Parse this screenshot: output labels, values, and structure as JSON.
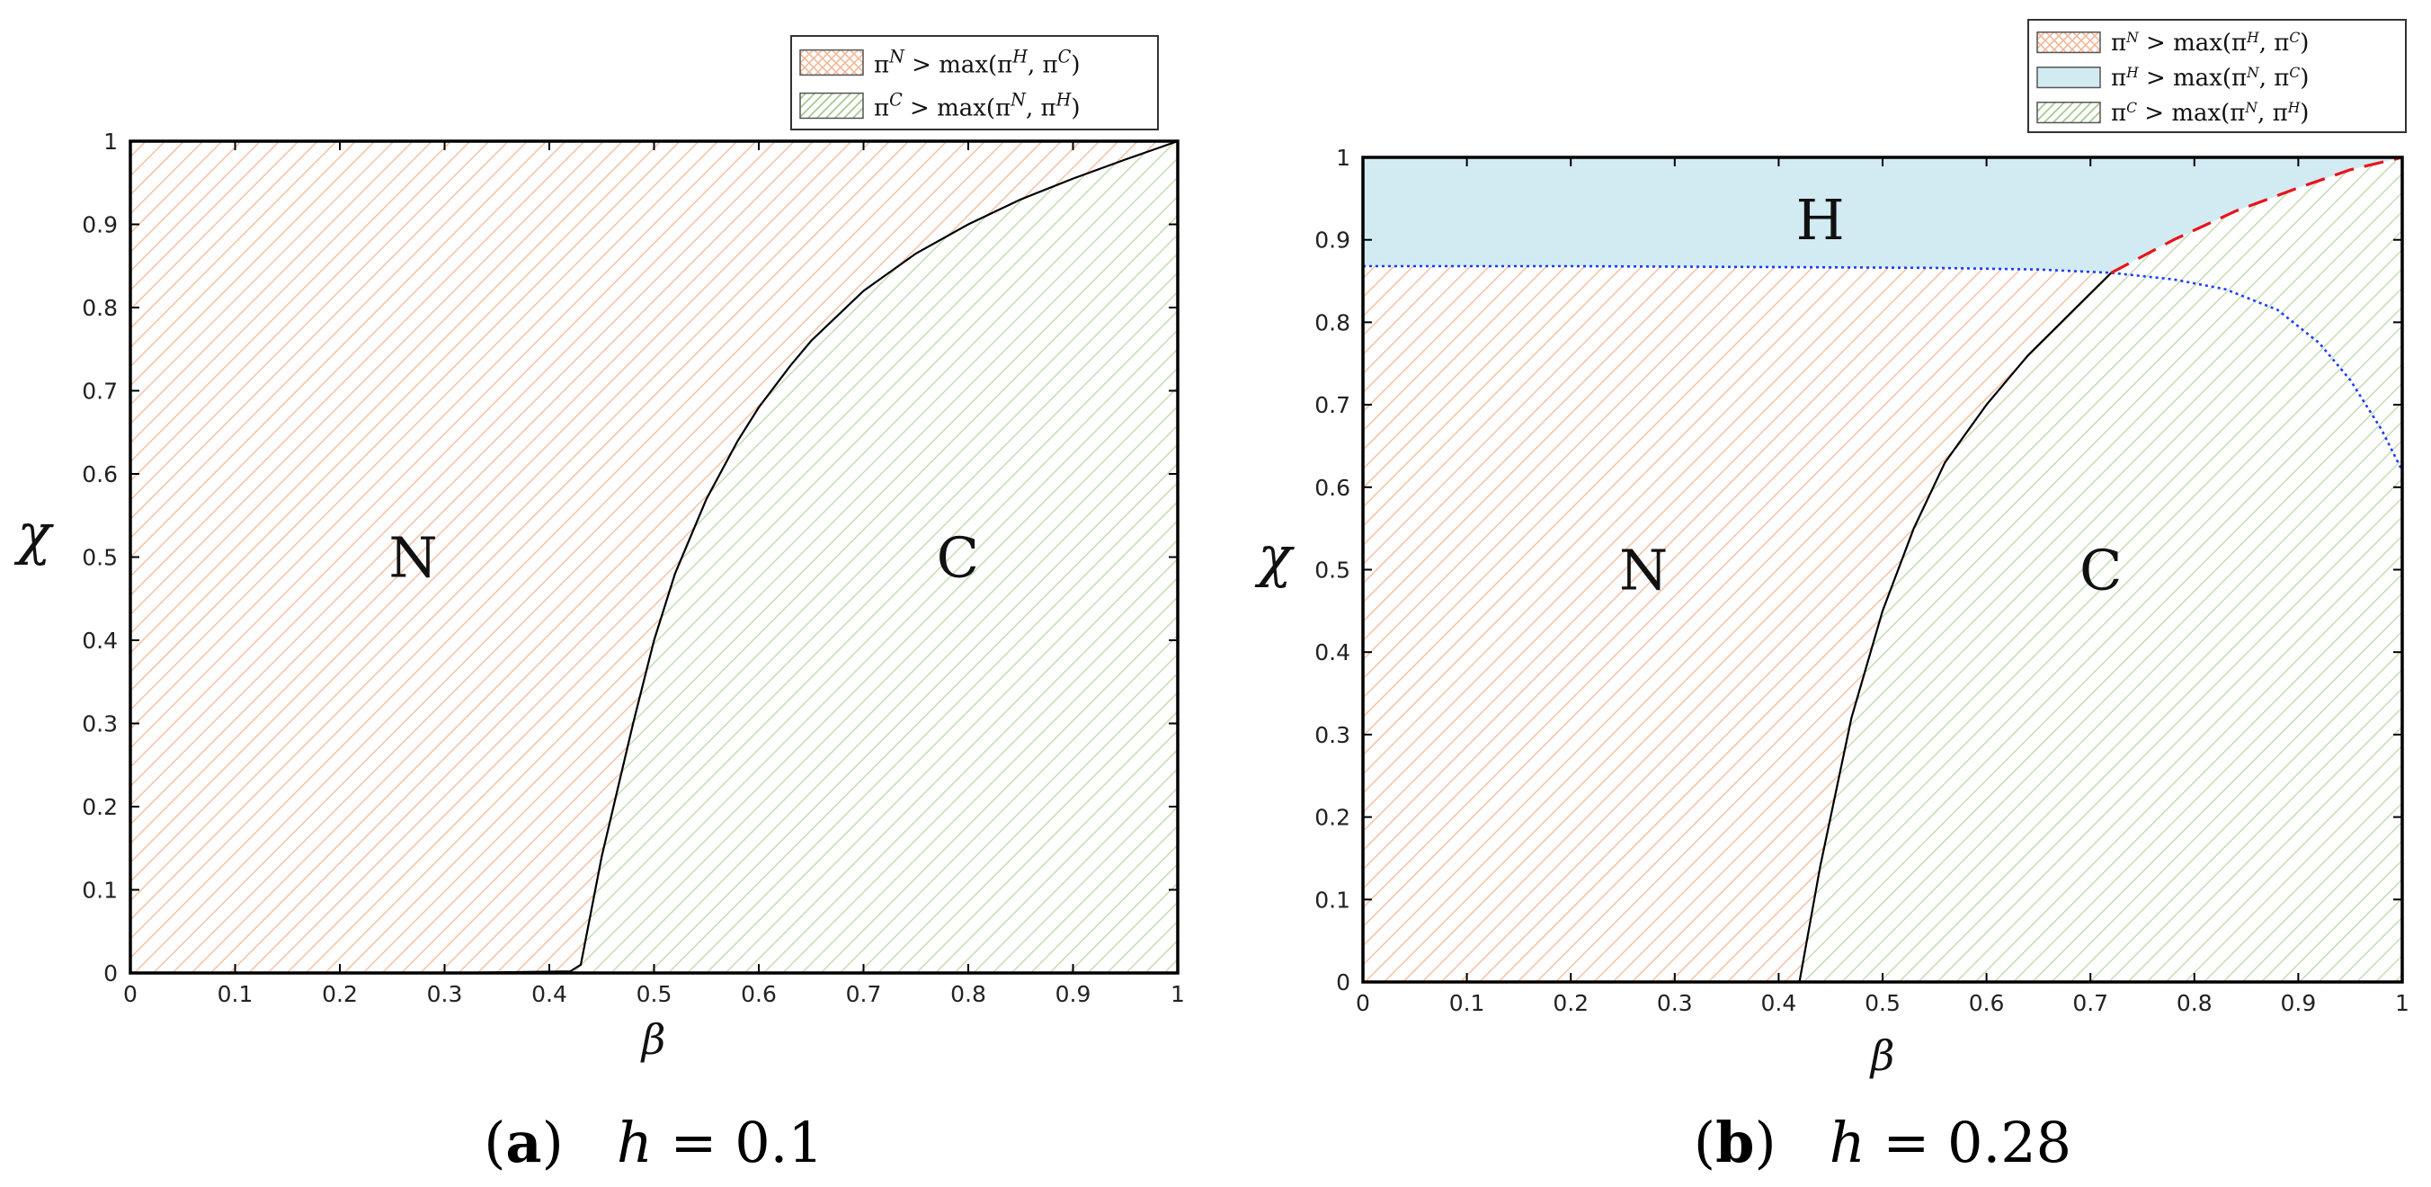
{
  "chart_data": [
    {
      "type": "area",
      "panel": "a",
      "caption": {
        "label": "a",
        "text": "h = 0.1"
      },
      "xlabel": "β",
      "ylabel": "χ",
      "xlim": [
        0,
        1
      ],
      "ylim": [
        0,
        1
      ],
      "xticks": [
        "0",
        "0.1",
        "0.2",
        "0.3",
        "0.4",
        "0.5",
        "0.6",
        "0.7",
        "0.8",
        "0.9",
        "1"
      ],
      "yticks": [
        "0",
        "0.1",
        "0.2",
        "0.3",
        "0.4",
        "0.5",
        "0.6",
        "0.7",
        "0.8",
        "0.9",
        "1"
      ],
      "grid": false,
      "legend_position": "top-right, outside",
      "legend": [
        {
          "id": "N",
          "text": "π^N > max(π^H, π^C)",
          "fill": "orange-hatch"
        },
        {
          "id": "C",
          "text": "π^C > max(π^N, π^H)",
          "fill": "green-hatch"
        }
      ],
      "region_labels": [
        {
          "text": "N",
          "x": 0.27,
          "y": 0.5
        },
        {
          "text": "C",
          "x": 0.79,
          "y": 0.5
        }
      ],
      "boundary_NC": {
        "style": "solid black",
        "x": [
          0,
          0.3,
          0.42,
          0.43,
          0.45,
          0.48,
          0.5,
          0.52,
          0.55,
          0.58,
          0.6,
          0.63,
          0.65,
          0.7,
          0.75,
          0.8,
          0.85,
          0.9,
          0.95,
          1.0
        ],
        "y": [
          0,
          0,
          0.002,
          0.01,
          0.14,
          0.3,
          0.4,
          0.48,
          0.57,
          0.64,
          0.68,
          0.73,
          0.76,
          0.82,
          0.865,
          0.9,
          0.93,
          0.955,
          0.978,
          1.0
        ]
      }
    },
    {
      "type": "area",
      "panel": "b",
      "caption": {
        "label": "b",
        "text": "h = 0.28"
      },
      "xlabel": "β",
      "ylabel": "χ",
      "xlim": [
        0,
        1
      ],
      "ylim": [
        0,
        1
      ],
      "xticks": [
        "0",
        "0.1",
        "0.2",
        "0.3",
        "0.4",
        "0.5",
        "0.6",
        "0.7",
        "0.8",
        "0.9",
        "1"
      ],
      "yticks": [
        "0",
        "0.1",
        "0.2",
        "0.3",
        "0.4",
        "0.5",
        "0.6",
        "0.7",
        "0.8",
        "0.9",
        "1"
      ],
      "grid": false,
      "legend_position": "top-right, outside",
      "legend": [
        {
          "id": "N",
          "text": "π^N > max(π^H, π^C)",
          "fill": "orange-hatch"
        },
        {
          "id": "H",
          "text": "π^H > max(π^N, π^C)",
          "fill": "light-blue"
        },
        {
          "id": "C",
          "text": "π^C > max(π^N, π^H)",
          "fill": "green-hatch"
        }
      ],
      "region_labels": [
        {
          "text": "H",
          "x": 0.44,
          "y": 0.925
        },
        {
          "text": "N",
          "x": 0.27,
          "y": 0.5
        },
        {
          "text": "C",
          "x": 0.71,
          "y": 0.5
        }
      ],
      "boundary_NC": {
        "style": "solid black",
        "x": [
          0.42,
          0.44,
          0.47,
          0.5,
          0.53,
          0.56,
          0.6,
          0.64,
          0.68,
          0.72
        ],
        "y": [
          0,
          0.14,
          0.32,
          0.45,
          0.55,
          0.63,
          0.7,
          0.76,
          0.81,
          0.86
        ]
      },
      "boundary_HN": {
        "style": "dotted blue",
        "x": [
          0,
          0.2,
          0.4,
          0.55,
          0.65,
          0.72,
          0.78,
          0.83,
          0.88,
          0.92,
          0.95,
          0.98,
          1.0
        ],
        "y": [
          0.868,
          0.868,
          0.867,
          0.866,
          0.864,
          0.86,
          0.852,
          0.84,
          0.815,
          0.775,
          0.73,
          0.67,
          0.62
        ]
      },
      "boundary_HC": {
        "style": "dashed red",
        "x": [
          0.72,
          0.78,
          0.84,
          0.9,
          0.95,
          1.0
        ],
        "y": [
          0.86,
          0.9,
          0.935,
          0.963,
          0.985,
          1.0
        ]
      }
    }
  ]
}
